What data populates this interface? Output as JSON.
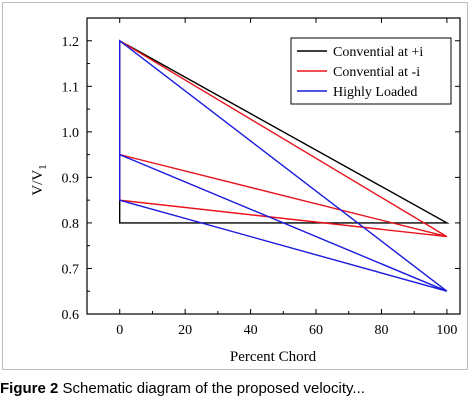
{
  "chart_data": {
    "type": "line",
    "title": "",
    "xlabel": "Percent Chord",
    "ylabel": "V/V",
    "ylabel_subscript": "1",
    "xlim": [
      -10,
      104
    ],
    "ylim": [
      0.6,
      1.25
    ],
    "xticks": [
      0,
      20,
      40,
      60,
      80,
      100
    ],
    "yticks": [
      0.6,
      0.7,
      0.8,
      0.9,
      1.0,
      1.1,
      1.2
    ],
    "xtick_labels": [
      "0",
      "20",
      "40",
      "60",
      "80",
      "100"
    ],
    "ytick_labels": [
      "0.6",
      "0.7",
      "0.8",
      "0.9",
      "1.0",
      "1.1",
      "1.2"
    ],
    "legend_position": "top-right",
    "grid": false,
    "series": [
      {
        "name": "Convential at +i",
        "color": "#000000",
        "x": [
          0,
          0,
          100,
          0
        ],
        "y": [
          1.2,
          0.8,
          0.8,
          1.2
        ]
      },
      {
        "name": "Convential at -i",
        "color": "#e8141c",
        "x": [
          0,
          0,
          100,
          0,
          0,
          100
        ],
        "y": [
          1.2,
          0.85,
          0.77,
          1.2,
          0.95,
          0.77
        ]
      },
      {
        "name": "Highly Loaded",
        "color": "#1a1adc",
        "x": [
          0,
          0,
          100,
          0,
          0,
          100
        ],
        "y": [
          1.2,
          0.95,
          0.65,
          1.2,
          0.85,
          0.65
        ]
      }
    ]
  },
  "caption": {
    "prefix": "Figure 2",
    "text": "Schematic diagram of the proposed velocity..."
  }
}
